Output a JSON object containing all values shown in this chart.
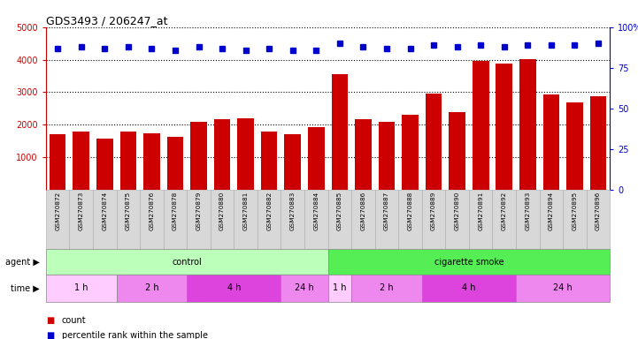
{
  "title": "GDS3493 / 206247_at",
  "samples": [
    "GSM270872",
    "GSM270873",
    "GSM270874",
    "GSM270875",
    "GSM270876",
    "GSM270878",
    "GSM270879",
    "GSM270880",
    "GSM270881",
    "GSM270882",
    "GSM270883",
    "GSM270884",
    "GSM270885",
    "GSM270886",
    "GSM270887",
    "GSM270888",
    "GSM270889",
    "GSM270890",
    "GSM270891",
    "GSM270892",
    "GSM270893",
    "GSM270894",
    "GSM270895",
    "GSM270896"
  ],
  "counts": [
    1700,
    1780,
    1580,
    1780,
    1750,
    1640,
    2080,
    2180,
    2200,
    1780,
    1720,
    1920,
    3550,
    2170,
    2080,
    2320,
    2960,
    2390,
    3960,
    3880,
    4020,
    2940,
    2680,
    2890
  ],
  "percentile_ranks": [
    87,
    88,
    87,
    88,
    87,
    86,
    88,
    87,
    86,
    87,
    86,
    86,
    90,
    88,
    87,
    87,
    89,
    88,
    89,
    88,
    89,
    89,
    89,
    90
  ],
  "bar_color": "#cc0000",
  "dot_color": "#0000cc",
  "ylim_left": [
    0,
    5000
  ],
  "ylim_right": [
    0,
    100
  ],
  "yticks_left": [
    1000,
    2000,
    3000,
    4000,
    5000
  ],
  "ytick_labels_left": [
    "1000",
    "2000",
    "3000",
    "4000",
    "5000"
  ],
  "yticks_right": [
    0,
    25,
    50,
    75,
    100
  ],
  "ytick_labels_right": [
    "0",
    "25",
    "50",
    "75",
    "100%"
  ],
  "agent_groups": [
    {
      "label": "control",
      "start": 0,
      "end": 12,
      "color": "#bbffbb"
    },
    {
      "label": "cigarette smoke",
      "start": 12,
      "end": 24,
      "color": "#55ee55"
    }
  ],
  "time_spans": [
    {
      "label": "1 h",
      "start": 0,
      "end": 3,
      "color": "#ffccff"
    },
    {
      "label": "2 h",
      "start": 3,
      "end": 6,
      "color": "#ee88ee"
    },
    {
      "label": "4 h",
      "start": 6,
      "end": 10,
      "color": "#dd44dd"
    },
    {
      "label": "24 h",
      "start": 10,
      "end": 12,
      "color": "#ee88ee"
    },
    {
      "label": "1 h",
      "start": 12,
      "end": 13,
      "color": "#ffccff"
    },
    {
      "label": "2 h",
      "start": 13,
      "end": 16,
      "color": "#ee88ee"
    },
    {
      "label": "4 h",
      "start": 16,
      "end": 20,
      "color": "#dd44dd"
    },
    {
      "label": "24 h",
      "start": 20,
      "end": 24,
      "color": "#ee88ee"
    }
  ],
  "background_color": "#ffffff",
  "plot_bg_color": "#ffffff",
  "label_box_color": "#d8d8d8",
  "label_box_edge_color": "#aaaaaa"
}
